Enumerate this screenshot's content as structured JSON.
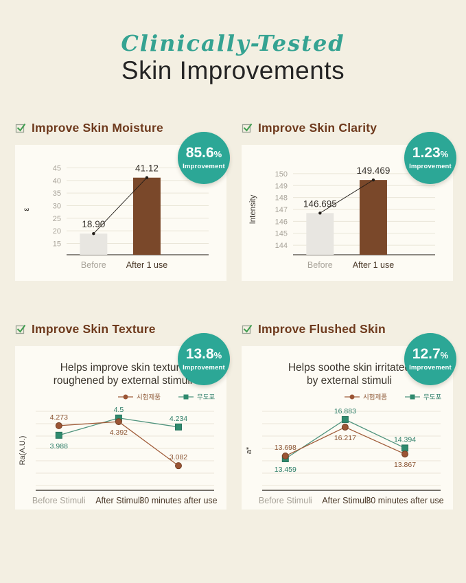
{
  "header": {
    "script_title": "Clinically-Tested",
    "main_title": "Skin Improvements"
  },
  "sections": [
    {
      "title": "Improve Skin Moisture",
      "badge_number": "85.6",
      "badge_percent": "%",
      "badge_label": "Improvement"
    },
    {
      "title": "Improve Skin Clarity",
      "badge_number": "1.23",
      "badge_percent": "%",
      "badge_label": "Improvement"
    },
    {
      "title": "Improve Skin Texture",
      "badge_number": "13.8",
      "badge_percent": "%",
      "badge_label": "Improvement"
    },
    {
      "title": "Improve Flushed Skin",
      "badge_number": "12.7",
      "badge_percent": "%",
      "badge_label": "Improvement"
    }
  ],
  "colors": {
    "background": "#f3efe2",
    "card": "#fdfbf4",
    "accent_teal": "#2ca796",
    "header_script": "#35a392",
    "title_dark": "#242424",
    "section_brown": "#6e3a1d",
    "bar_before": "#e8e6e1",
    "bar_after": "#7a482a",
    "grid": "#eae6d8",
    "tick_gray": "#a8a399",
    "xlabel_dark": "#4a3827",
    "value_dark": "#38332d",
    "axis": "#4a443c",
    "connector": "#221d18",
    "chart_title": "#3b352c",
    "check_green": "#3f9d4f"
  },
  "chart_data": [
    {
      "type": "bar",
      "title": "Improve Skin Moisture",
      "improvement": "85.6%",
      "ylabel": "ε",
      "categories": [
        "Before",
        "After 1 use"
      ],
      "values": [
        18.9,
        41.12
      ],
      "value_labels": [
        "18.90",
        "41.12"
      ],
      "yticks": [
        15,
        20,
        25,
        30,
        35,
        40,
        45
      ],
      "ylim": [
        10.5,
        46.5
      ],
      "bar_colors": [
        "#e8e6e1",
        "#7a482a"
      ],
      "grid": true,
      "connector": true,
      "legend": false
    },
    {
      "type": "bar",
      "title": "Improve Skin Clarity",
      "improvement": "1.23%",
      "ylabel": "Intensity",
      "categories": [
        "Before",
        "After 1 use"
      ],
      "values": [
        146.695,
        149.469
      ],
      "value_labels": [
        "146.695",
        "149.469"
      ],
      "yticks": [
        144,
        145,
        146,
        147,
        148,
        149,
        150
      ],
      "ylim": [
        143.2,
        150.8
      ],
      "bar_colors": [
        "#e8e6e1",
        "#7a482a"
      ],
      "grid": true,
      "connector": true,
      "legend": false
    },
    {
      "type": "line",
      "title": "Improve Skin Texture",
      "improvement": "13.8%",
      "subtitle_lines": [
        "Helps improve skin texture",
        "roughened by external stimuli"
      ],
      "ylabel": "Ra(A.U.)",
      "categories": [
        "Before Stimuli",
        "After Stimuli",
        "30 minutes after use"
      ],
      "ylim": [
        2.35,
        4.7
      ],
      "grid": true,
      "legend_position": "top-right",
      "series": [
        {
          "name": "시험제품",
          "marker": "circle",
          "color": "#a05c39",
          "marker_fill": "#9b5535",
          "marker_stroke": "#744024",
          "label_color": "#8a5330",
          "values": [
            4.273,
            4.392,
            3.082
          ],
          "value_labels": [
            "4.273",
            "4.392",
            "3.082"
          ],
          "label_pos": [
            "above",
            "below",
            "above"
          ]
        },
        {
          "name": "무도포",
          "marker": "square",
          "color": "#4f937d",
          "marker_fill": "#2f8a6e",
          "marker_stroke": "#26745c",
          "label_color": "#2b7c66",
          "values": [
            3.988,
            4.5,
            4.234
          ],
          "value_labels": [
            "3.988",
            "4.5",
            "4.234"
          ],
          "label_pos": [
            "below",
            "above",
            "above"
          ]
        }
      ]
    },
    {
      "type": "line",
      "title": "Improve Flushed Skin",
      "improvement": "12.7%",
      "subtitle_lines": [
        "Helps soothe skin irritated",
        "by external stimuli"
      ],
      "ylabel": "a*",
      "categories": [
        "Before Stimuli",
        "After Stimuli",
        "30 minutes after use"
      ],
      "ylim": [
        10.7,
        17.6
      ],
      "grid": true,
      "legend_position": "top-right",
      "series": [
        {
          "name": "시험제품",
          "marker": "circle",
          "color": "#a05c39",
          "marker_fill": "#9b5535",
          "marker_stroke": "#744024",
          "label_color": "#8a5330",
          "values": [
            13.698,
            16.217,
            13.867
          ],
          "value_labels": [
            "13.698",
            "16.217",
            "13.867"
          ],
          "label_pos": [
            "above",
            "below",
            "below"
          ]
        },
        {
          "name": "무도포",
          "marker": "square",
          "color": "#4f937d",
          "marker_fill": "#2f8a6e",
          "marker_stroke": "#26745c",
          "label_color": "#2b7c66",
          "values": [
            13.459,
            16.883,
            14.394
          ],
          "value_labels": [
            "13.459",
            "16.883",
            "14.394"
          ],
          "label_pos": [
            "below",
            "above",
            "above"
          ]
        }
      ]
    }
  ]
}
